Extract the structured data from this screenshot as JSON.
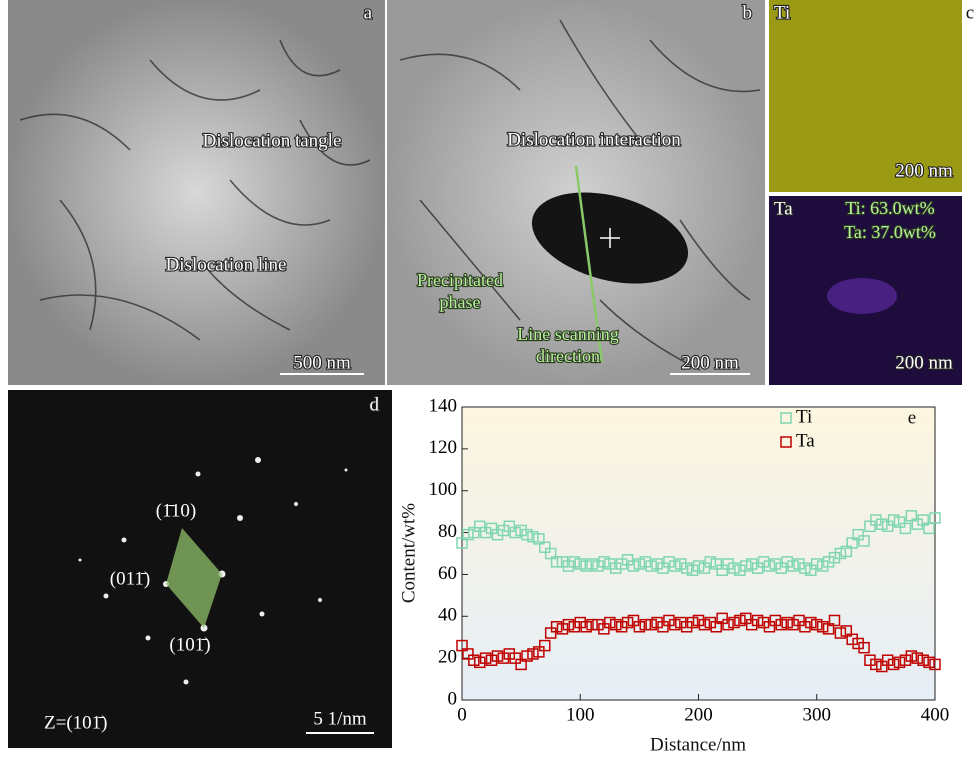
{
  "panels": {
    "a": {
      "label": "a",
      "tangle": "Dislocation tangle",
      "line": "Dislocation line",
      "scale": "500 nm"
    },
    "b": {
      "label": "b",
      "interaction": "Dislocation interaction",
      "precipitate": [
        "Precipitated",
        "phase"
      ],
      "scan": [
        "Line scanning",
        "direction"
      ],
      "scale": "200 nm"
    },
    "c": {
      "label": "c",
      "ti_map": {
        "element": "Ti",
        "scale": "200 nm"
      },
      "ta_map": {
        "element": "Ta",
        "ti_content": "Ti: 63.0wt%",
        "ta_content": "Ta: 37.0wt%",
        "scale": "200 nm"
      }
    },
    "d": {
      "label": "d",
      "spot1": "(1̄10)",
      "spot2": "(011̄)",
      "spot3": "(101̄)",
      "zone": "Z=(101̄)",
      "scale": "5 1/nm"
    }
  },
  "chart_data": {
    "type": "scatter",
    "panel_label": "e",
    "x_label": "Distance/nm",
    "y_label": "Content/wt%",
    "xlim": [
      0,
      400
    ],
    "xticks": [
      0,
      100,
      200,
      300,
      400
    ],
    "ylim": [
      0,
      140
    ],
    "yticks": [
      0,
      20,
      40,
      60,
      80,
      100,
      120,
      140
    ],
    "x": [
      0,
      5,
      10,
      15,
      20,
      25,
      30,
      35,
      40,
      45,
      50,
      55,
      60,
      65,
      70,
      75,
      80,
      85,
      90,
      95,
      100,
      105,
      110,
      115,
      120,
      125,
      130,
      135,
      140,
      145,
      150,
      155,
      160,
      165,
      170,
      175,
      180,
      185,
      190,
      195,
      200,
      205,
      210,
      215,
      220,
      225,
      230,
      235,
      240,
      245,
      250,
      255,
      260,
      265,
      270,
      275,
      280,
      285,
      290,
      295,
      300,
      305,
      310,
      315,
      320,
      325,
      330,
      335,
      340,
      345,
      350,
      355,
      360,
      365,
      370,
      375,
      380,
      385,
      390,
      395,
      400
    ],
    "series": [
      {
        "name": "Ti",
        "color": "#7fd6b0",
        "values": [
          75,
          79,
          80,
          83,
          80,
          82,
          79,
          81,
          83,
          80,
          81,
          79,
          78,
          77,
          73,
          70,
          66,
          66,
          64,
          66,
          65,
          64,
          65,
          64,
          66,
          65,
          63,
          65,
          67,
          64,
          65,
          66,
          64,
          65,
          63,
          66,
          64,
          65,
          63,
          62,
          64,
          63,
          66,
          65,
          62,
          65,
          63,
          62,
          64,
          65,
          63,
          66,
          64,
          65,
          63,
          66,
          64,
          65,
          63,
          62,
          65,
          64,
          66,
          68,
          70,
          71,
          75,
          79,
          76,
          83,
          86,
          84,
          83,
          86,
          85,
          82,
          88,
          84,
          86,
          82,
          87
        ]
      },
      {
        "name": "Ta",
        "color": "#c00000",
        "values": [
          26,
          22,
          19,
          18,
          20,
          19,
          21,
          20,
          22,
          20,
          17,
          21,
          22,
          23,
          26,
          32,
          35,
          34,
          36,
          35,
          37,
          35,
          36,
          36,
          34,
          37,
          36,
          35,
          37,
          38,
          35,
          36,
          36,
          37,
          35,
          38,
          36,
          37,
          35,
          37,
          38,
          36,
          37,
          35,
          39,
          36,
          37,
          38,
          39,
          36,
          38,
          37,
          35,
          38,
          36,
          37,
          36,
          38,
          35,
          37,
          36,
          35,
          34,
          38,
          32,
          33,
          29,
          27,
          25,
          19,
          17,
          16,
          19,
          17,
          18,
          19,
          21,
          20,
          19,
          18,
          17
        ]
      }
    ]
  }
}
